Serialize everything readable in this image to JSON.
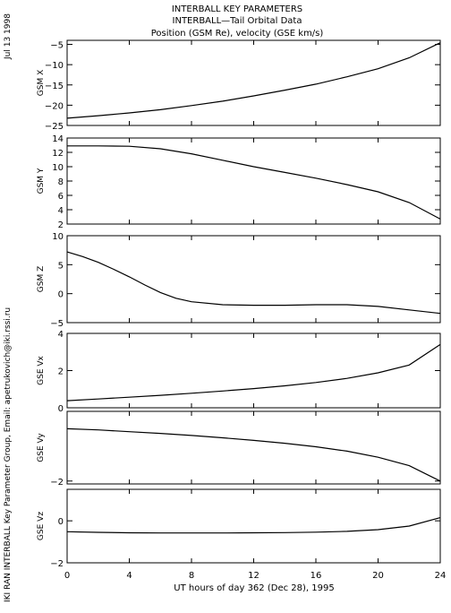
{
  "header": {
    "title1": "INTERBALL KEY PARAMETERS",
    "title2": "INTERBALL—Tail Orbital Data",
    "title3": "Position (GSM Re), velocity (GSE km/s)"
  },
  "side": {
    "date": "Jul 13 1998",
    "credit": "IKI RAN INTERBALL Key Parameter Group, Email: apetrukovich@iki.rssi.ru"
  },
  "xaxis": {
    "label": "UT hours of day 362 (Dec 28), 1995",
    "ticks": [
      0,
      4,
      8,
      12,
      16,
      20,
      24
    ]
  },
  "chart_data": [
    {
      "type": "line",
      "ylabel": "GSM X",
      "xlim": [
        0,
        24
      ],
      "ylim": [
        -25,
        -4
      ],
      "yticks": [
        -25,
        -20,
        -15,
        -10,
        -5
      ],
      "x": [
        0,
        2,
        4,
        6,
        8,
        10,
        12,
        14,
        16,
        18,
        20,
        22,
        24
      ],
      "values": [
        -23.2,
        -22.6,
        -21.9,
        -21.1,
        -20.1,
        -19.0,
        -17.7,
        -16.3,
        -14.8,
        -13.0,
        -11.0,
        -8.3,
        -4.6
      ]
    },
    {
      "type": "line",
      "ylabel": "GSM Y",
      "xlim": [
        0,
        24
      ],
      "ylim": [
        2,
        14
      ],
      "yticks": [
        2,
        4,
        6,
        8,
        10,
        12,
        14
      ],
      "x": [
        0,
        2,
        4,
        6,
        8,
        10,
        12,
        14,
        16,
        18,
        20,
        22,
        24
      ],
      "values": [
        12.9,
        12.9,
        12.85,
        12.5,
        11.8,
        10.9,
        10.0,
        9.2,
        8.4,
        7.5,
        6.5,
        5.0,
        2.7
      ]
    },
    {
      "type": "line",
      "ylabel": "GSM Z",
      "xlim": [
        0,
        24
      ],
      "ylim": [
        -5,
        10
      ],
      "yticks": [
        -5,
        0,
        5,
        10
      ],
      "x": [
        0,
        1,
        2,
        3,
        4,
        5,
        6,
        7,
        8,
        10,
        12,
        14,
        16,
        18,
        20,
        22,
        24
      ],
      "values": [
        7.2,
        6.4,
        5.4,
        4.2,
        2.9,
        1.5,
        0.2,
        -0.8,
        -1.4,
        -1.9,
        -2.0,
        -2.0,
        -1.9,
        -1.9,
        -2.2,
        -2.8,
        -3.4
      ]
    },
    {
      "type": "line",
      "ylabel": "GSE Vx",
      "xlim": [
        0,
        24
      ],
      "ylim": [
        0,
        4
      ],
      "yticks": [
        0,
        2,
        4
      ],
      "x": [
        0,
        2,
        4,
        6,
        8,
        10,
        12,
        14,
        16,
        18,
        20,
        22,
        24
      ],
      "values": [
        0.38,
        0.47,
        0.57,
        0.67,
        0.78,
        0.9,
        1.03,
        1.18,
        1.36,
        1.58,
        1.88,
        2.3,
        3.4
      ]
    },
    {
      "type": "line",
      "ylabel": "GSE Vy",
      "xlim": [
        0,
        24
      ],
      "ylim": [
        -2.1,
        0.4
      ],
      "yticks": [
        -2
      ],
      "x": [
        0,
        2,
        4,
        6,
        8,
        10,
        12,
        14,
        16,
        18,
        20,
        22,
        24
      ],
      "values": [
        -0.2,
        -0.24,
        -0.3,
        -0.36,
        -0.43,
        -0.51,
        -0.6,
        -0.7,
        -0.82,
        -0.97,
        -1.18,
        -1.47,
        -2.0
      ]
    },
    {
      "type": "line",
      "ylabel": "GSE Vz",
      "xlim": [
        0,
        24
      ],
      "ylim": [
        -2,
        1.5
      ],
      "yticks": [
        -2,
        0
      ],
      "x": [
        0,
        2,
        4,
        6,
        8,
        10,
        12,
        14,
        16,
        18,
        20,
        22,
        24
      ],
      "values": [
        -0.52,
        -0.55,
        -0.57,
        -0.58,
        -0.58,
        -0.58,
        -0.57,
        -0.56,
        -0.54,
        -0.5,
        -0.42,
        -0.25,
        0.15
      ]
    }
  ]
}
